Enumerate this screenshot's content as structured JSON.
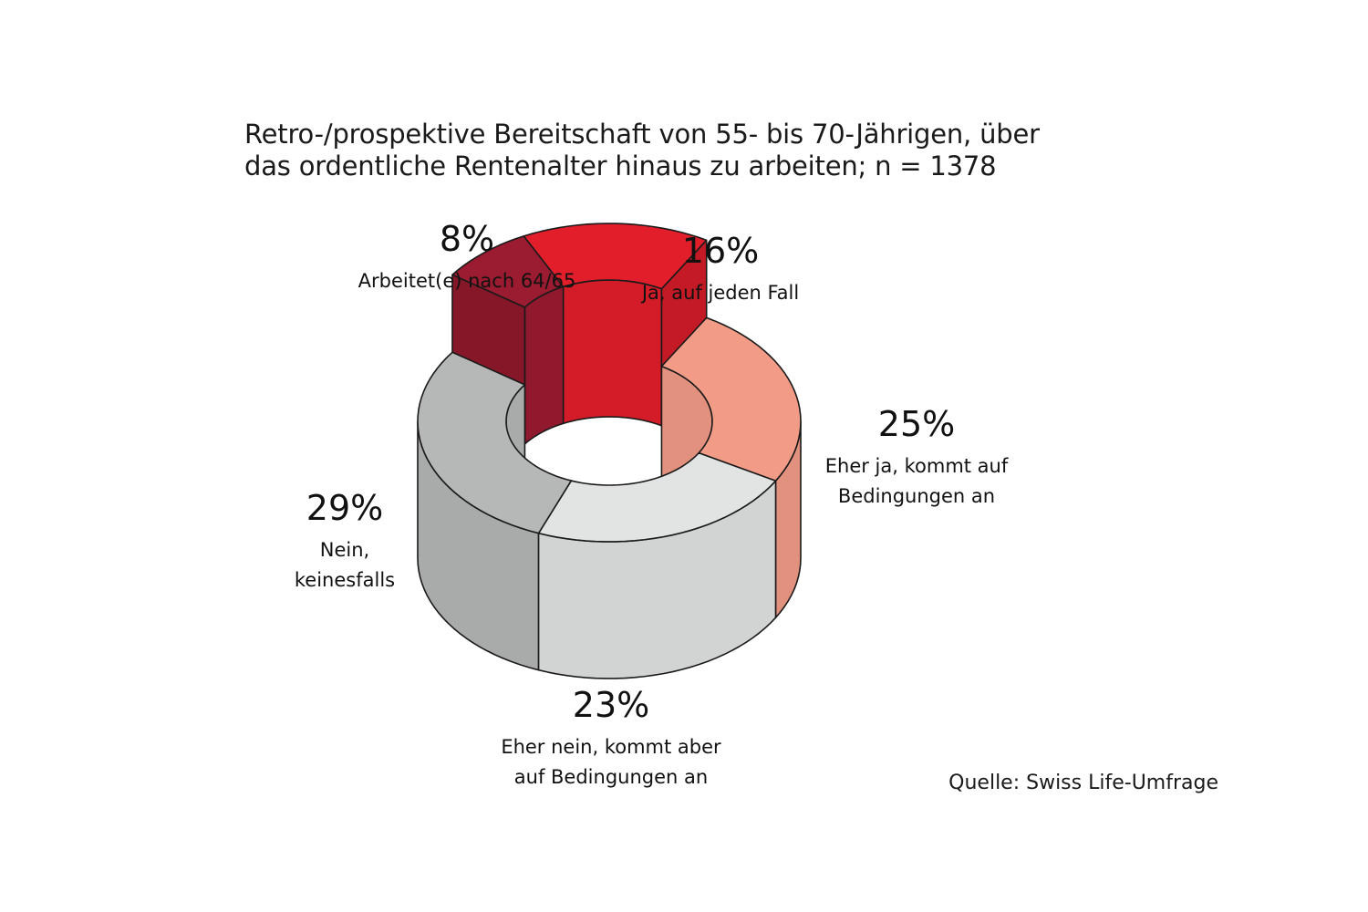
{
  "title": [
    "Retro-/prospektive Bereitschaft von 55- bis 70-Jährigen, über",
    "das ordentliche Rentenalter hinaus zu arbeiten; n = 1378"
  ],
  "source": "Quelle: Swiss Life-Umfrage",
  "chart_data": {
    "type": "pie",
    "variant": "3d-donut",
    "title": "Retro-/prospektive Bereitschaft von 55- bis 70-Jährigen, über das ordentliche Rentenalter hinaus zu arbeiten; n = 1378",
    "unit": "%",
    "slices": [
      {
        "label": "Arbeitet(e) nach 64/65",
        "label_lines": [
          "Arbeitet(e) nach 64/65"
        ],
        "value": 8,
        "value_label": "8%",
        "color": "#9b1b30",
        "exploded": true
      },
      {
        "label": "Ja, auf jeden Fall",
        "label_lines": [
          "Ja, auf jeden Fall"
        ],
        "value": 16,
        "value_label": "16%",
        "color": "#e31e2b",
        "exploded": true
      },
      {
        "label": "Eher ja, kommt auf Bedingungen an",
        "label_lines": [
          "Eher ja, kommt auf",
          "Bedingungen an"
        ],
        "value": 25,
        "value_label": "25%",
        "color": "#f29c88",
        "exploded": false
      },
      {
        "label": "Eher nein, kommt aber auf Bedingungen an",
        "label_lines": [
          "Eher nein, kommt aber",
          "auf Bedingungen an"
        ],
        "value": 23,
        "value_label": "23%",
        "color": "#e2e4e3",
        "exploded": false
      },
      {
        "label": "Nein, keinesfalls",
        "label_lines": [
          "Nein,",
          "keinesfalls"
        ],
        "value": 29,
        "value_label": "29%",
        "color": "#b6b8b7",
        "exploded": false
      }
    ]
  }
}
